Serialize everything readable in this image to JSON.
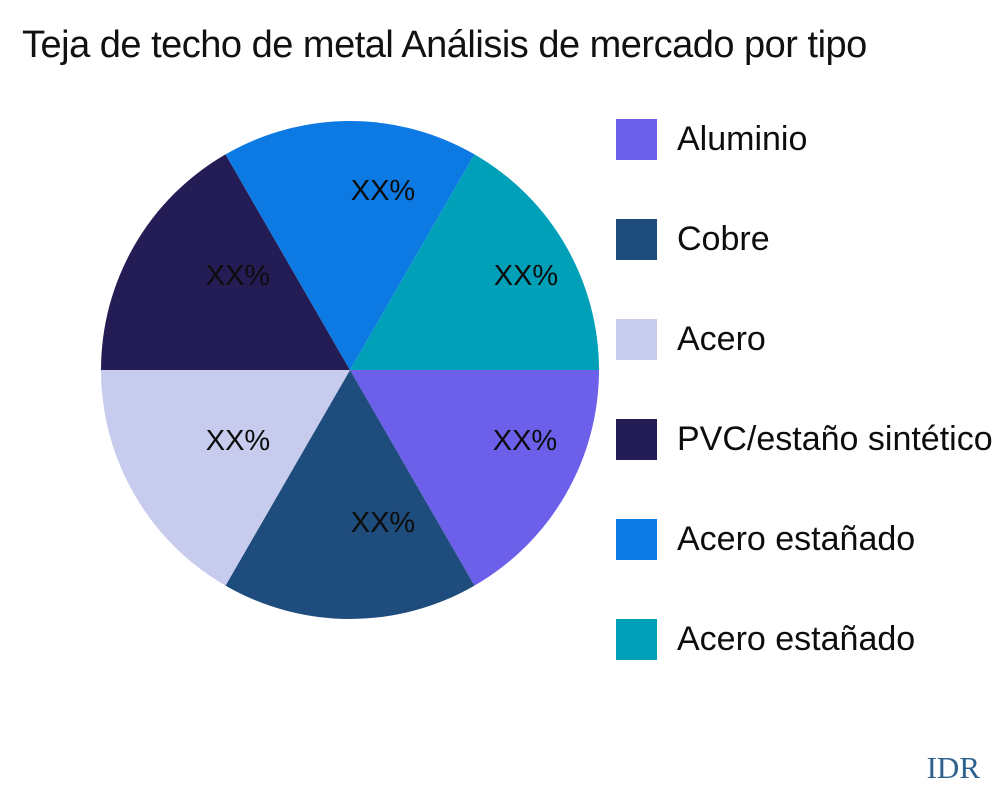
{
  "title": "Teja de techo de metal Análisis de mercado por tipo",
  "watermark": "IDR",
  "chart_data": {
    "type": "pie",
    "title": "Teja de techo de metal Análisis de mercado por tipo",
    "legend_position": "right",
    "start_angle_deg": 0,
    "direction": "clockwise",
    "label_text_all": "XX%",
    "slices": [
      {
        "label": "Aluminio",
        "value": 16.67,
        "text": "XX%",
        "color": "#6C5FE9"
      },
      {
        "label": "Cobre",
        "value": 16.67,
        "text": "XX%",
        "color": "#1E4C7C"
      },
      {
        "label": "Acero",
        "value": 16.67,
        "text": "XX%",
        "color": "#C7CBEE"
      },
      {
        "label": "PVC/estaño sintético",
        "value": 16.67,
        "text": "XX%",
        "color": "#241D55"
      },
      {
        "label": "Acero estañado",
        "value": 16.67,
        "text": "XX%",
        "color": "#0D79E3"
      },
      {
        "label": "Acero estañado",
        "value": 16.67,
        "text": "XX%",
        "color": "#00A0B8"
      }
    ]
  }
}
